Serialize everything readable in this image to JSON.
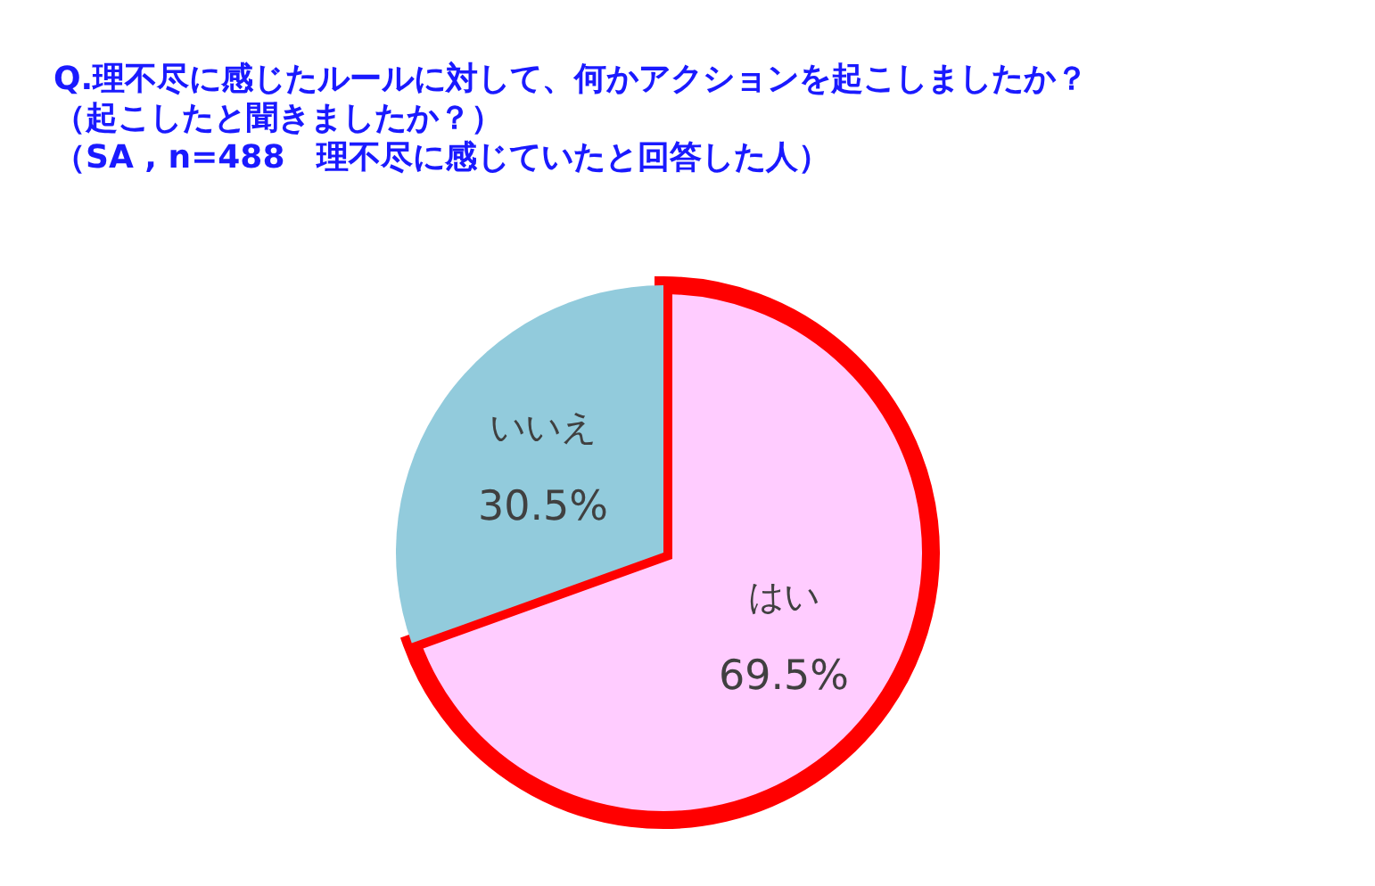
{
  "chart_data": {
    "type": "pie",
    "title": "Q.理不尽に感じたルールに対して、何かアクションを起こしましたか？",
    "subtitle": "（起こしたと聞きましたか？）",
    "annotations": [
      "（SA , n=488　理不尽に感じていたと回答した人）"
    ],
    "categories": [
      "はい",
      "いいえ"
    ],
    "values": [
      69.5,
      30.5
    ],
    "colors": [
      "#ffccff",
      "#92cbdc"
    ],
    "value_labels": [
      "69.5%",
      "30.5%"
    ]
  }
}
